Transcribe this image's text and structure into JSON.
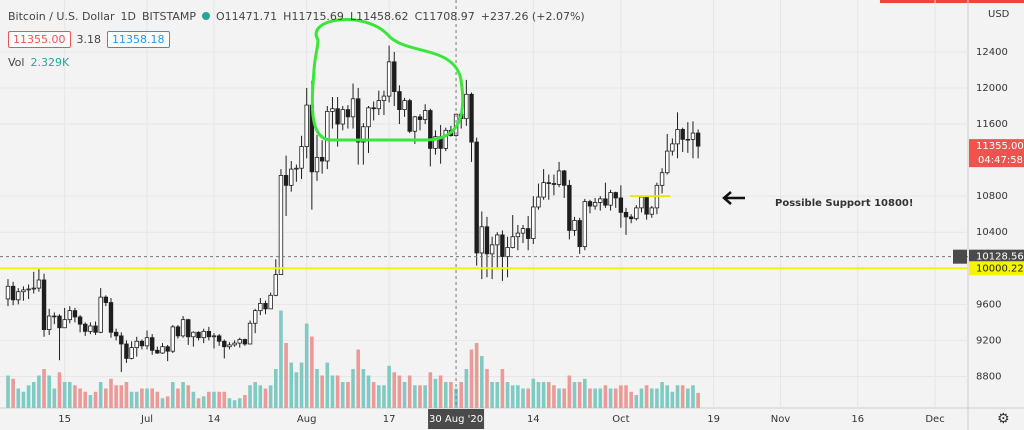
{
  "header": {
    "symbol": "Bitcoin / U.S. Dollar",
    "interval": "1D",
    "exchange": "BITSTAMP",
    "ohlc": [
      "O11471.71",
      "H11715.69",
      "L11458.62",
      "C11708.97"
    ],
    "change": "+237.26 (+2.07%)",
    "bid": "11355.00",
    "spread": "3.18",
    "ask": "11358.18",
    "vol_title": "Vol",
    "vol_value": "2.329K"
  },
  "chart_data": {
    "type": "candlestick",
    "currency": "USD",
    "x": [
      0,
      1,
      2,
      3,
      4,
      5,
      6,
      7,
      8,
      9,
      10,
      11,
      12,
      13,
      14,
      15,
      16,
      17,
      18,
      19,
      20,
      21,
      22,
      23,
      24,
      25,
      26,
      27,
      28,
      29,
      30,
      31,
      32,
      33,
      34,
      35,
      36,
      37,
      38,
      39,
      40,
      41,
      42,
      43,
      44,
      45,
      46,
      47,
      48,
      49,
      50,
      51,
      52,
      53,
      54,
      55,
      56,
      57,
      58,
      59,
      60,
      61,
      62,
      63,
      64,
      65,
      66,
      67,
      68,
      69,
      70,
      71,
      72,
      73,
      74,
      75,
      76,
      77,
      78,
      79,
      80,
      81,
      82,
      83,
      84,
      85,
      86,
      87,
      88,
      89,
      90,
      91,
      92,
      93,
      94,
      95,
      96,
      97,
      98,
      99,
      100,
      101,
      102,
      103,
      104,
      105,
      106,
      107,
      108,
      109,
      110,
      111,
      112,
      113,
      114,
      115,
      116,
      117,
      118,
      119,
      120,
      121,
      122,
      123,
      124,
      125,
      126,
      127,
      128,
      129,
      130,
      131,
      132,
      133,
      134
    ],
    "open": [
      9660,
      9800,
      9650,
      9740,
      9760,
      9770,
      9780,
      9870,
      9320,
      9470,
      9470,
      9340,
      9430,
      9530,
      9460,
      9380,
      9300,
      9360,
      9290,
      9680,
      9620,
      9290,
      9250,
      9160,
      9000,
      9120,
      9190,
      9140,
      9230,
      9090,
      9060,
      9130,
      9080,
      9350,
      9250,
      9430,
      9240,
      9290,
      9230,
      9300,
      9240,
      9250,
      9190,
      9130,
      9150,
      9170,
      9210,
      9160,
      9390,
      9530,
      9610,
      9550,
      9700,
      9930,
      11030,
      10920,
      11100,
      11110,
      11350,
      11810,
      11070,
      11230,
      11190,
      11740,
      11770,
      11600,
      11760,
      11680,
      11880,
      11400,
      11570,
      11780,
      11770,
      11860,
      11910,
      12290,
      11960,
      11760,
      11860,
      11520,
      11680,
      11650,
      11750,
      11330,
      11460,
      11330,
      11530,
      11471.71,
      11708.97,
      11660,
      11930,
      11400,
      10170,
      10460,
      10160,
      10260,
      10370,
      10130,
      10230,
      10350,
      10390,
      10440,
      10330,
      10680,
      10790,
      10950,
      10940,
      10930,
      11080,
      10920,
      10420,
      10530,
      10240,
      10740,
      10690,
      10730,
      10770,
      10700,
      10840,
      10780,
      10620,
      10570,
      10550,
      10670,
      10790,
      10600,
      10670,
      10920,
      11060,
      11300,
      11380,
      11540,
      11430,
      11430,
      11500
    ],
    "high": [
      9880,
      9850,
      9780,
      9800,
      9820,
      9960,
      9990,
      9940,
      9550,
      9510,
      9490,
      9560,
      9580,
      9560,
      9480,
      9400,
      9400,
      9410,
      9780,
      9700,
      9670,
      9330,
      9290,
      9200,
      9190,
      9240,
      9210,
      9310,
      9270,
      9130,
      9170,
      9150,
      9370,
      9370,
      9470,
      9440,
      9300,
      9300,
      9330,
      9350,
      9280,
      9270,
      9210,
      9180,
      9200,
      9230,
      9220,
      9420,
      9550,
      9670,
      9640,
      9730,
      10100,
      11100,
      11250,
      11190,
      11150,
      11470,
      12000,
      12080,
      11480,
      11420,
      11800,
      11900,
      11900,
      11800,
      11810,
      12050,
      12000,
      11610,
      11800,
      11850,
      11970,
      11970,
      12470,
      12400,
      12030,
      11890,
      11880,
      11690,
      11710,
      11820,
      11770,
      11530,
      11590,
      11560,
      11580,
      11715.69,
      11770,
      12090,
      11950,
      11450,
      10630,
      10570,
      10350,
      10400,
      10420,
      10350,
      10590,
      10480,
      10480,
      10580,
      10800,
      10940,
      11100,
      11040,
      11040,
      11180,
      11090,
      10980,
      10570,
      10560,
      10770,
      10760,
      10780,
      10800,
      10950,
      10870,
      10850,
      10920,
      10670,
      10600,
      10700,
      10800,
      10800,
      10690,
      10950,
      11110,
      11490,
      11440,
      11730,
      11560,
      11620,
      11630,
      11540
    ],
    "low": [
      9580,
      9590,
      9600,
      9640,
      9660,
      9720,
      9740,
      9240,
      9260,
      9380,
      8980,
      9340,
      9390,
      9400,
      9290,
      9250,
      9270,
      9260,
      9280,
      9580,
      9230,
      9200,
      8850,
      8950,
      8990,
      9020,
      9100,
      9100,
      9040,
      9050,
      9050,
      8970,
      9060,
      9220,
      9230,
      9150,
      9130,
      9200,
      9170,
      9200,
      9110,
      9140,
      9000,
      9100,
      9130,
      9120,
      9140,
      9160,
      9280,
      9480,
      9490,
      9550,
      9690,
      9930,
      10580,
      10850,
      10960,
      10990,
      11220,
      10650,
      10970,
      11050,
      11100,
      11550,
      11350,
      11530,
      11550,
      11550,
      11150,
      11150,
      11280,
      11640,
      11700,
      11700,
      11840,
      11800,
      11600,
      11680,
      11500,
      11380,
      11530,
      11600,
      11130,
      11260,
      11160,
      11300,
      11460,
      11458.62,
      11550,
      11580,
      11180,
      10030,
      9880,
      9900,
      9880,
      9990,
      9860,
      9900,
      10220,
      10200,
      10280,
      10200,
      10270,
      10650,
      10760,
      10760,
      10810,
      10900,
      10780,
      10320,
      10360,
      10160,
      10200,
      10610,
      10650,
      10640,
      10670,
      10640,
      10670,
      10450,
      10370,
      10500,
      10530,
      10620,
      10540,
      10560,
      10600,
      10830,
      11040,
      11250,
      11220,
      11290,
      11280,
      11220,
      11220
    ],
    "close": [
      9800,
      9650,
      9740,
      9760,
      9770,
      9780,
      9870,
      9320,
      9470,
      9470,
      9340,
      9430,
      9530,
      9460,
      9380,
      9300,
      9360,
      9290,
      9680,
      9620,
      9290,
      9250,
      9160,
      9000,
      9120,
      9190,
      9140,
      9230,
      9090,
      9060,
      9130,
      9080,
      9350,
      9250,
      9430,
      9240,
      9290,
      9230,
      9300,
      9240,
      9250,
      9190,
      9130,
      9150,
      9170,
      9210,
      9160,
      9390,
      9530,
      9610,
      9550,
      9700,
      9930,
      11030,
      10920,
      11100,
      11110,
      11350,
      11810,
      11070,
      11230,
      11190,
      11740,
      11770,
      11600,
      11760,
      11680,
      11880,
      11400,
      11570,
      11780,
      11770,
      11860,
      11910,
      12290,
      11960,
      11760,
      11860,
      11520,
      11680,
      11650,
      11750,
      11330,
      11460,
      11330,
      11530,
      11471.71,
      11708.97,
      11660,
      11930,
      11400,
      10170,
      10460,
      10160,
      10260,
      10370,
      10130,
      10230,
      10350,
      10390,
      10440,
      10330,
      10680,
      10790,
      10950,
      10940,
      10930,
      11080,
      10920,
      10420,
      10530,
      10240,
      10740,
      10690,
      10730,
      10770,
      10700,
      10840,
      10780,
      10620,
      10570,
      10550,
      10670,
      10790,
      10600,
      10670,
      10920,
      11060,
      11300,
      11380,
      11540,
      11430,
      11430,
      11500,
      11355
    ],
    "volume": [
      5,
      4.5,
      3,
      2.5,
      3.5,
      4,
      5,
      6,
      5,
      3,
      5.5,
      4,
      4,
      3.5,
      3,
      2.5,
      2,
      2.5,
      4,
      3,
      4.5,
      3.5,
      3.5,
      4,
      2.5,
      2.5,
      3,
      3,
      3,
      2.5,
      1.5,
      1.8,
      4,
      3,
      4,
      3.5,
      2.5,
      1.5,
      1.8,
      2.5,
      2.5,
      2.5,
      2.5,
      1.5,
      1.2,
      1.5,
      2,
      3.5,
      4,
      3.5,
      3,
      3.5,
      6,
      15,
      10,
      7,
      5.5,
      7,
      13,
      11,
      6,
      5,
      7,
      5,
      5,
      4,
      4,
      6,
      9,
      6,
      5,
      4,
      3.5,
      3.5,
      6.5,
      5.5,
      5,
      4,
      5,
      3.5,
      3.5,
      3.5,
      5.5,
      4.5,
      5,
      4,
      4,
      3,
      4,
      6,
      9,
      10,
      8,
      6,
      4,
      4,
      6,
      4,
      3.5,
      3.5,
      3,
      3,
      4.5,
      4,
      4,
      4,
      3.5,
      3,
      3,
      5,
      4,
      4,
      4.5,
      3,
      3,
      3,
      3.5,
      3,
      3,
      3.5,
      3.5,
      2.5,
      2,
      3,
      3.5,
      3,
      3,
      4,
      3.5,
      2.5,
      3.5,
      3.5,
      3,
      3.5,
      2.329
    ],
    "xlim": [
      -1.55,
      186.4
    ],
    "ylim": [
      8450,
      12976
    ],
    "volume_lim": [
      0,
      62.8
    ],
    "yticks": [
      12400,
      12000,
      11600,
      10800,
      10400,
      9600,
      9200,
      8800
    ],
    "xticks": [
      {
        "value": 11,
        "label": "15"
      },
      {
        "value": 27,
        "label": "Jul"
      },
      {
        "value": 40,
        "label": "14"
      },
      {
        "value": 58,
        "label": "Aug"
      },
      {
        "value": 74,
        "label": "17"
      },
      {
        "value": 102,
        "label": "14"
      },
      {
        "value": 119,
        "label": "Oct"
      },
      {
        "value": 137,
        "label": "19"
      },
      {
        "value": 150,
        "label": "Nov"
      },
      {
        "value": 165,
        "label": "16"
      },
      {
        "value": 180,
        "label": "Dec"
      }
    ],
    "crosshair_x": {
      "value": 87,
      "label": "30 Aug '20"
    },
    "price_markers": [
      {
        "value": 11355,
        "label": "11355.00",
        "color": "#ef5350"
      },
      {
        "value": 10128.56,
        "label": "10128.56",
        "color": "#4a4a4a"
      },
      {
        "value": 10000.22,
        "label": "10000.22",
        "color": "#f5f500"
      }
    ],
    "countdown": "04:47:58",
    "support_level": 10800,
    "annotation": "Possible Support 10800!",
    "up_color": "#ffffff",
    "down_color": "#1e1e1e",
    "volume_up_color": "#7fcbc3",
    "volume_down_color": "#eb9a98",
    "grid": true
  }
}
